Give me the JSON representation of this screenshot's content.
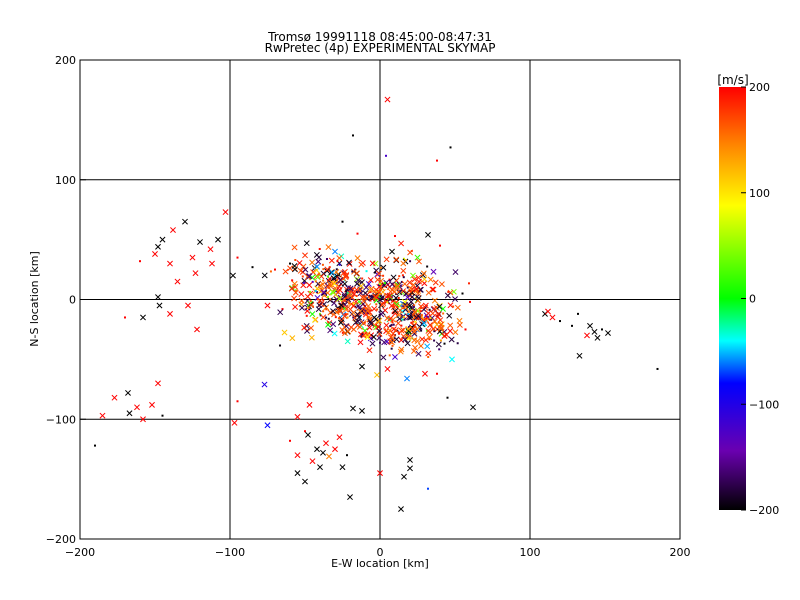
{
  "chart_data": {
    "type": "scatter",
    "title": "Tromsø 19991118 08:45:00-08:47:31",
    "subtitle": "RwPretec (4p) EXPERIMENTAL SKYMAP",
    "xlabel": "E-W location [km]",
    "ylabel": "N-S location [km]",
    "xlim": [
      -200,
      200
    ],
    "ylim": [
      -200,
      200
    ],
    "xticks": [
      -200,
      -100,
      0,
      100,
      200
    ],
    "yticks": [
      -200,
      -100,
      0,
      100,
      200
    ],
    "x_tick_labels": [
      "−200",
      "−100",
      "0",
      "100",
      "200"
    ],
    "y_tick_labels": [
      "−200",
      "−100",
      "0",
      "100",
      "200"
    ],
    "grid": true,
    "marker_types": [
      "x",
      "dot"
    ],
    "colorbar": {
      "label": "[m/s]",
      "range": [
        -200,
        200
      ],
      "ticks": [
        -200,
        -100,
        0,
        100,
        200
      ],
      "tick_labels": [
        "−200",
        "−100",
        "0",
        "100",
        "200"
      ],
      "colors": [
        "#000000",
        "#6a00b0",
        "#0000ff",
        "#00ffff",
        "#00ff00",
        "#ffff00",
        "#ff8800",
        "#ff0000"
      ]
    },
    "points": [
      {
        "x": 5,
        "y": 167,
        "v": 200,
        "m": "x"
      },
      {
        "x": 38,
        "y": 116,
        "v": 200,
        "m": "dot"
      },
      {
        "x": 4,
        "y": 120,
        "v": -120,
        "m": "dot"
      },
      {
        "x": -18,
        "y": 137,
        "v": -200,
        "m": "dot"
      },
      {
        "x": 47,
        "y": 127,
        "v": -200,
        "m": "dot"
      },
      {
        "x": -130,
        "y": 65,
        "v": -200,
        "m": "x"
      },
      {
        "x": -103,
        "y": 73,
        "v": 200,
        "m": "x"
      },
      {
        "x": -145,
        "y": 50,
        "v": -200,
        "m": "x"
      },
      {
        "x": -148,
        "y": 44,
        "v": -200,
        "m": "x"
      },
      {
        "x": -138,
        "y": 58,
        "v": 200,
        "m": "x"
      },
      {
        "x": -120,
        "y": 48,
        "v": -200,
        "m": "x"
      },
      {
        "x": -113,
        "y": 42,
        "v": 200,
        "m": "x"
      },
      {
        "x": -108,
        "y": 50,
        "v": -200,
        "m": "x"
      },
      {
        "x": -125,
        "y": 35,
        "v": 200,
        "m": "x"
      },
      {
        "x": -140,
        "y": 30,
        "v": 200,
        "m": "x"
      },
      {
        "x": -150,
        "y": 38,
        "v": 200,
        "m": "x"
      },
      {
        "x": -160,
        "y": 32,
        "v": 200,
        "m": "dot"
      },
      {
        "x": -135,
        "y": 15,
        "v": 200,
        "m": "x"
      },
      {
        "x": -148,
        "y": 2,
        "v": -200,
        "m": "x"
      },
      {
        "x": -147,
        "y": -5,
        "v": -200,
        "m": "x"
      },
      {
        "x": -158,
        "y": -15,
        "v": -200,
        "m": "x"
      },
      {
        "x": -140,
        "y": -12,
        "v": 200,
        "m": "x"
      },
      {
        "x": -122,
        "y": -25,
        "v": 200,
        "m": "x"
      },
      {
        "x": -128,
        "y": -5,
        "v": 200,
        "m": "x"
      },
      {
        "x": -123,
        "y": 22,
        "v": 200,
        "m": "x"
      },
      {
        "x": -112,
        "y": 30,
        "v": 200,
        "m": "x"
      },
      {
        "x": -98,
        "y": 20,
        "v": -200,
        "m": "x"
      },
      {
        "x": -95,
        "y": 35,
        "v": 200,
        "m": "dot"
      },
      {
        "x": -170,
        "y": -15,
        "v": 200,
        "m": "dot"
      },
      {
        "x": -185,
        "y": -97,
        "v": 200,
        "m": "x"
      },
      {
        "x": -177,
        "y": -82,
        "v": 200,
        "m": "x"
      },
      {
        "x": -168,
        "y": -78,
        "v": -200,
        "m": "x"
      },
      {
        "x": -162,
        "y": -90,
        "v": 200,
        "m": "x"
      },
      {
        "x": -158,
        "y": -100,
        "v": 200,
        "m": "x"
      },
      {
        "x": -152,
        "y": -88,
        "v": 200,
        "m": "x"
      },
      {
        "x": -148,
        "y": -70,
        "v": 200,
        "m": "x"
      },
      {
        "x": -167,
        "y": -95,
        "v": -200,
        "m": "x"
      },
      {
        "x": -145,
        "y": -97,
        "v": -200,
        "m": "dot"
      },
      {
        "x": -190,
        "y": -122,
        "v": -200,
        "m": "dot"
      },
      {
        "x": -97,
        "y": -103,
        "v": 200,
        "m": "x"
      },
      {
        "x": -95,
        "y": -85,
        "v": 200,
        "m": "dot"
      },
      {
        "x": -77,
        "y": -71,
        "v": -100,
        "m": "x"
      },
      {
        "x": -47,
        "y": -88,
        "v": 200,
        "m": "x"
      },
      {
        "x": -55,
        "y": -98,
        "v": 200,
        "m": "x"
      },
      {
        "x": -50,
        "y": -110,
        "v": 200,
        "m": "dot"
      },
      {
        "x": -48,
        "y": -113,
        "v": -200,
        "m": "x"
      },
      {
        "x": -42,
        "y": -125,
        "v": -200,
        "m": "x"
      },
      {
        "x": -38,
        "y": -128,
        "v": -200,
        "m": "x"
      },
      {
        "x": -34,
        "y": -131,
        "v": 150,
        "m": "x"
      },
      {
        "x": -30,
        "y": -125,
        "v": 200,
        "m": "x"
      },
      {
        "x": -27,
        "y": -115,
        "v": 200,
        "m": "x"
      },
      {
        "x": -36,
        "y": -120,
        "v": 200,
        "m": "x"
      },
      {
        "x": -45,
        "y": -135,
        "v": 200,
        "m": "x"
      },
      {
        "x": -55,
        "y": -130,
        "v": 200,
        "m": "x"
      },
      {
        "x": -60,
        "y": -118,
        "v": 200,
        "m": "dot"
      },
      {
        "x": -55,
        "y": -145,
        "v": -200,
        "m": "x"
      },
      {
        "x": -50,
        "y": -152,
        "v": -200,
        "m": "x"
      },
      {
        "x": -40,
        "y": -140,
        "v": -200,
        "m": "x"
      },
      {
        "x": -25,
        "y": -140,
        "v": -200,
        "m": "x"
      },
      {
        "x": -22,
        "y": -130,
        "v": -200,
        "m": "dot"
      },
      {
        "x": -20,
        "y": -165,
        "v": -200,
        "m": "x"
      },
      {
        "x": -75,
        "y": -105,
        "v": -80,
        "m": "x"
      },
      {
        "x": -18,
        "y": -91,
        "v": -200,
        "m": "x"
      },
      {
        "x": -12,
        "y": -93,
        "v": -200,
        "m": "x"
      },
      {
        "x": 0,
        "y": -145,
        "v": 200,
        "m": "x"
      },
      {
        "x": 20,
        "y": -134,
        "v": -200,
        "m": "x"
      },
      {
        "x": 20,
        "y": -141,
        "v": -200,
        "m": "x"
      },
      {
        "x": 16,
        "y": -148,
        "v": -200,
        "m": "x"
      },
      {
        "x": 14,
        "y": -175,
        "v": -200,
        "m": "x"
      },
      {
        "x": 32,
        "y": -158,
        "v": -70,
        "m": "dot"
      },
      {
        "x": 62,
        "y": -90,
        "v": -200,
        "m": "x"
      },
      {
        "x": 45,
        "y": -82,
        "v": -200,
        "m": "dot"
      },
      {
        "x": 18,
        "y": -66,
        "v": -60,
        "m": "x"
      },
      {
        "x": 30,
        "y": -62,
        "v": 200,
        "m": "x"
      },
      {
        "x": -2,
        "y": -63,
        "v": 120,
        "m": "x"
      },
      {
        "x": 5,
        "y": -58,
        "v": 200,
        "m": "x"
      },
      {
        "x": -12,
        "y": -56,
        "v": -200,
        "m": "x"
      },
      {
        "x": 38,
        "y": -62,
        "v": 200,
        "m": "dot"
      },
      {
        "x": 110,
        "y": -12,
        "v": -200,
        "m": "x"
      },
      {
        "x": 112,
        "y": -10,
        "v": 200,
        "m": "x"
      },
      {
        "x": 115,
        "y": -15,
        "v": 200,
        "m": "x"
      },
      {
        "x": 120,
        "y": -18,
        "v": -200,
        "m": "dot"
      },
      {
        "x": 128,
        "y": -22,
        "v": -200,
        "m": "dot"
      },
      {
        "x": 132,
        "y": -12,
        "v": -200,
        "m": "dot"
      },
      {
        "x": 140,
        "y": -22,
        "v": -200,
        "m": "x"
      },
      {
        "x": 143,
        "y": -27,
        "v": -200,
        "m": "x"
      },
      {
        "x": 145,
        "y": -32,
        "v": -200,
        "m": "x"
      },
      {
        "x": 148,
        "y": -25,
        "v": -200,
        "m": "dot"
      },
      {
        "x": 152,
        "y": -28,
        "v": -200,
        "m": "x"
      },
      {
        "x": 138,
        "y": -30,
        "v": 200,
        "m": "x"
      },
      {
        "x": 133,
        "y": -47,
        "v": -200,
        "m": "x"
      },
      {
        "x": 185,
        "y": -58,
        "v": -200,
        "m": "dot"
      },
      {
        "x": -85,
        "y": 27,
        "v": -200,
        "m": "dot"
      },
      {
        "x": -70,
        "y": 25,
        "v": 200,
        "m": "dot"
      },
      {
        "x": -60,
        "y": 30,
        "v": -200,
        "m": "dot"
      },
      {
        "x": -75,
        "y": -5,
        "v": 200,
        "m": "x"
      },
      {
        "x": -65,
        "y": -8,
        "v": 200,
        "m": "dot"
      },
      {
        "x": -57,
        "y": 28,
        "v": -200,
        "m": "x"
      },
      {
        "x": -25,
        "y": 65,
        "v": -200,
        "m": "dot"
      },
      {
        "x": -15,
        "y": 55,
        "v": 200,
        "m": "dot"
      },
      {
        "x": 10,
        "y": 53,
        "v": 200,
        "m": "dot"
      },
      {
        "x": 32,
        "y": 54,
        "v": -200,
        "m": "x"
      },
      {
        "x": 40,
        "y": 45,
        "v": 200,
        "m": "dot"
      },
      {
        "x": 55,
        "y": 5,
        "v": -200,
        "m": "dot"
      },
      {
        "x": 60,
        "y": -2,
        "v": 200,
        "m": "dot"
      },
      {
        "x": 57,
        "y": -25,
        "v": 200,
        "m": "dot"
      },
      {
        "x": 48,
        "y": -50,
        "v": -40,
        "m": "x"
      },
      {
        "x": -3,
        "y": 30,
        "v": 60,
        "m": "x"
      },
      {
        "x": 8,
        "y": 40,
        "v": -200,
        "m": "x"
      },
      {
        "x": 16,
        "y": 34,
        "v": 80,
        "m": "dot"
      },
      {
        "x": 25,
        "y": 35,
        "v": 20,
        "m": "x"
      },
      {
        "x": 22,
        "y": 20,
        "v": 40,
        "m": "x"
      },
      {
        "x": -20,
        "y": 8,
        "v": -60,
        "m": "x"
      },
      {
        "x": -10,
        "y": -26,
        "v": 20,
        "m": "x"
      },
      {
        "x": -40,
        "y": -12,
        "v": 40,
        "m": "dot"
      },
      {
        "x": 15,
        "y": -10,
        "v": -40,
        "m": "x"
      },
      {
        "x": 10,
        "y": -48,
        "v": -120,
        "m": "x"
      },
      {
        "x": -30,
        "y": 40,
        "v": -60,
        "m": "x"
      }
    ],
    "clusters": [
      {
        "cx": -28,
        "cy": -2,
        "sx": 16,
        "sy": 14,
        "n": 260
      },
      {
        "cx": 10,
        "cy": 2,
        "sx": 16,
        "sy": 15,
        "n": 240
      },
      {
        "cx": 32,
        "cy": -18,
        "sx": 11,
        "sy": 11,
        "n": 110
      },
      {
        "cx": -40,
        "cy": 20,
        "sx": 12,
        "sy": 8,
        "n": 70
      },
      {
        "cx": 5,
        "cy": -32,
        "sx": 14,
        "sy": 8,
        "n": 70
      }
    ],
    "random_seed": 19991118
  }
}
